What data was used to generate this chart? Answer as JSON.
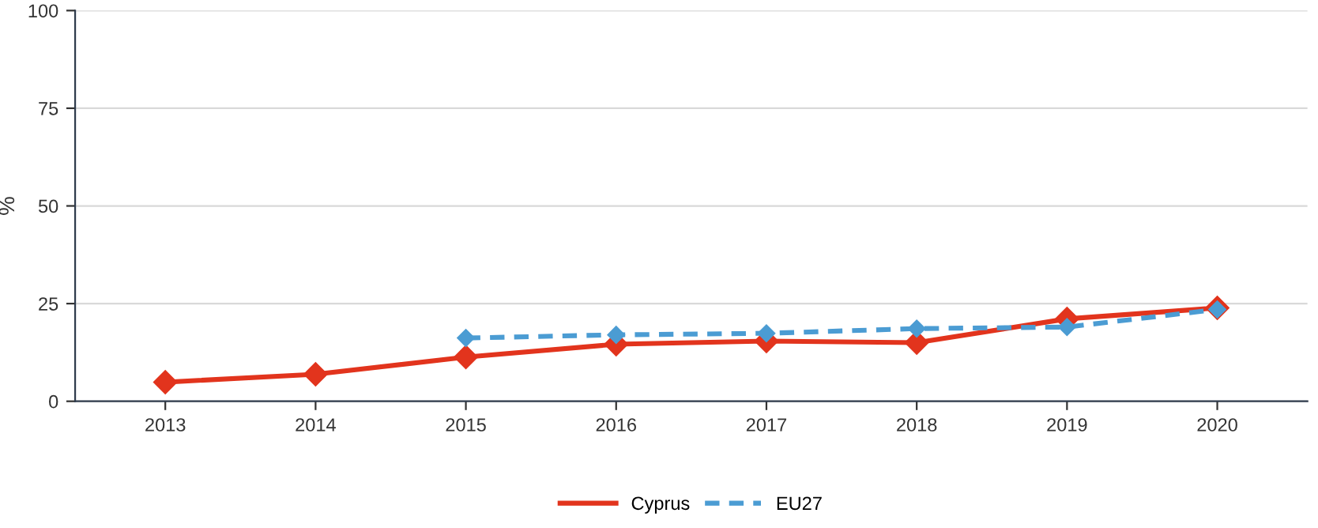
{
  "chart_data": {
    "type": "line",
    "ylabel": "%",
    "categories": [
      "2013",
      "2014",
      "2015",
      "2016",
      "2017",
      "2018",
      "2019",
      "2020"
    ],
    "series": [
      {
        "name": "Cyprus",
        "color": "#e2341d",
        "line_style": "solid",
        "values": [
          4.9,
          6.9,
          11.3,
          14.6,
          15.4,
          15.0,
          21.1,
          23.9
        ]
      },
      {
        "name": "EU27",
        "color": "#4b9cd3",
        "line_style": "dashed",
        "values": [
          null,
          null,
          16.2,
          17.0,
          17.4,
          18.6,
          19.0,
          23.5
        ]
      }
    ],
    "ylim": [
      0,
      100
    ],
    "yticks": [
      0,
      25,
      50,
      75,
      100
    ],
    "grid": "y",
    "legend": "bottom",
    "marker": "diamond"
  }
}
